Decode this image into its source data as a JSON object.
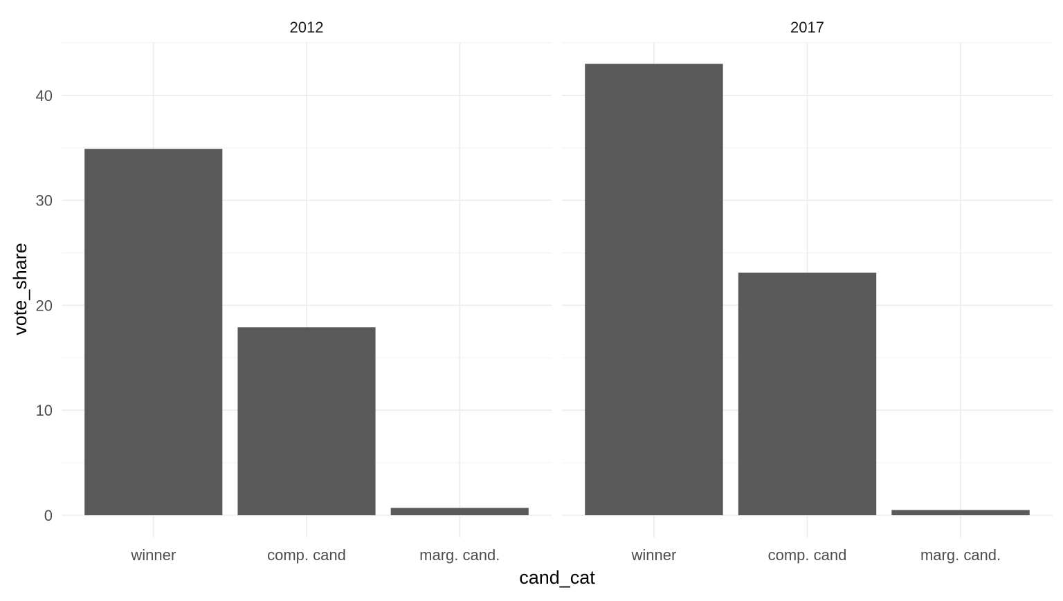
{
  "chart_data": {
    "type": "bar",
    "categories": [
      "winner",
      "comp. cand",
      "marg. cand."
    ],
    "facets": [
      {
        "label": "2012",
        "values": [
          34.9,
          17.9,
          0.7
        ]
      },
      {
        "label": "2017",
        "values": [
          43.0,
          23.1,
          0.5
        ]
      }
    ],
    "xlabel": "cand_cat",
    "ylabel": "vote_share",
    "ylim": [
      0,
      45
    ],
    "yticks": [
      0,
      10,
      20,
      30,
      40
    ],
    "grid": true,
    "colors": {
      "bar": "#595959",
      "grid": "#ebebeb",
      "background": "#ffffff"
    }
  }
}
